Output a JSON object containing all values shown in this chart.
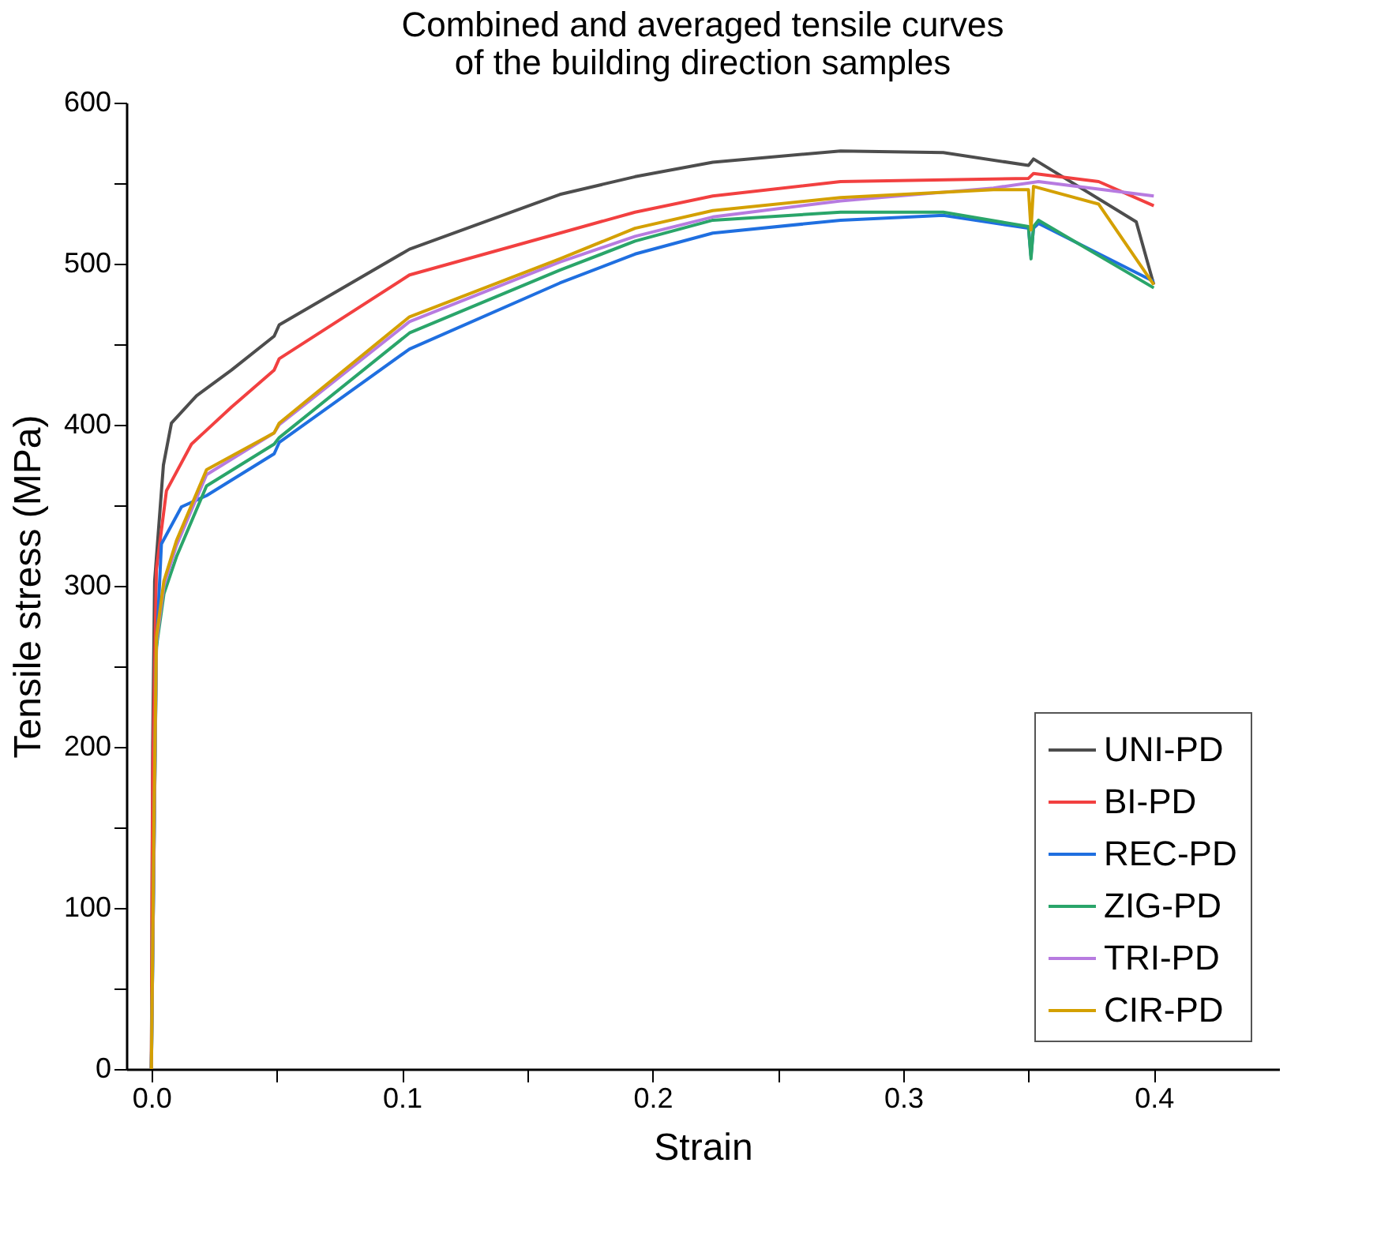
{
  "chart_data": {
    "type": "line",
    "title": "Combined and averaged tensile curves\nof the building direction samples",
    "xlabel": "Strain",
    "ylabel": "Tensile stress (MPa)",
    "xlim": [
      -0.01,
      0.45
    ],
    "ylim": [
      0,
      600
    ],
    "xticks": [
      {
        "value": 0.0,
        "label": "0.0"
      },
      {
        "value": 0.05,
        "label": null
      },
      {
        "value": 0.1,
        "label": "0.1"
      },
      {
        "value": 0.15,
        "label": null
      },
      {
        "value": 0.2,
        "label": "0.2"
      },
      {
        "value": 0.25,
        "label": null
      },
      {
        "value": 0.3,
        "label": "0.3"
      },
      {
        "value": 0.35,
        "label": null
      },
      {
        "value": 0.4,
        "label": "0.4"
      }
    ],
    "yticks": [
      0,
      {
        "value": 50,
        "label": null
      },
      100,
      {
        "value": 150,
        "label": null
      },
      200,
      {
        "value": 250,
        "label": null
      },
      300,
      {
        "value": 350,
        "label": null
      },
      400,
      {
        "value": 450,
        "label": null
      },
      500,
      {
        "value": 550,
        "label": null
      },
      600
    ],
    "grid": false,
    "legend": "bottom right",
    "marker": "none",
    "line_style": "solid",
    "series": [
      {
        "name": "UNI-PD",
        "color": "#4d4d4d",
        "x": [
          0,
          0.0005,
          0.0013,
          0.0048,
          0.008,
          0.018,
          0.032,
          0.049,
          0.051,
          0.103,
          0.163,
          0.193,
          0.224,
          0.275,
          0.316,
          0.35,
          0.352,
          0.393,
          0.4
        ],
        "values": [
          0,
          200,
          303,
          375,
          401,
          418,
          434,
          455,
          462,
          509,
          543,
          554,
          563,
          570,
          569,
          561,
          565,
          526,
          487
        ]
      },
      {
        "name": "BI-PD",
        "color": "#f24040",
        "x": [
          0,
          0.0005,
          0.002,
          0.006,
          0.016,
          0.032,
          0.049,
          0.051,
          0.103,
          0.163,
          0.193,
          0.224,
          0.275,
          0.35,
          0.352,
          0.378,
          0.4
        ],
        "values": [
          0,
          180,
          310,
          359,
          388,
          411,
          434,
          441,
          493,
          519,
          532,
          542,
          551,
          553,
          556,
          551,
          536
        ]
      },
      {
        "name": "REC-PD",
        "color": "#1f6fe0",
        "x": [
          0,
          0.002,
          0.004,
          0.012,
          0.022,
          0.049,
          0.051,
          0.103,
          0.163,
          0.193,
          0.224,
          0.275,
          0.316,
          0.35,
          0.351,
          0.352,
          0.354,
          0.4
        ],
        "values": [
          0,
          260,
          326,
          349,
          356,
          382,
          389,
          447,
          488,
          506,
          519,
          527,
          530,
          522,
          505,
          522,
          525,
          489
        ]
      },
      {
        "name": "ZIG-PD",
        "color": "#2aa56a",
        "x": [
          0,
          0.002,
          0.005,
          0.01,
          0.022,
          0.049,
          0.051,
          0.103,
          0.163,
          0.193,
          0.224,
          0.275,
          0.316,
          0.35,
          0.351,
          0.352,
          0.354,
          0.4
        ],
        "values": [
          0,
          262,
          295,
          318,
          362,
          388,
          392,
          457,
          496,
          514,
          527,
          532,
          532,
          523,
          503,
          523,
          527,
          485
        ]
      },
      {
        "name": "TRI-PD",
        "color": "#b77be0",
        "x": [
          0,
          0.002,
          0.005,
          0.01,
          0.022,
          0.049,
          0.051,
          0.103,
          0.163,
          0.193,
          0.224,
          0.275,
          0.336,
          0.354,
          0.4
        ],
        "values": [
          0,
          265,
          300,
          325,
          369,
          395,
          400,
          464,
          501,
          517,
          529,
          539,
          547,
          551,
          542
        ]
      },
      {
        "name": "CIR-PD",
        "color": "#d4a000",
        "x": [
          0,
          0.001,
          0.002,
          0.005,
          0.01,
          0.022,
          0.049,
          0.051,
          0.103,
          0.163,
          0.193,
          0.224,
          0.275,
          0.336,
          0.35,
          0.351,
          0.352,
          0.378,
          0.4
        ],
        "values": [
          0,
          150,
          268,
          303,
          328,
          372,
          395,
          401,
          467,
          503,
          522,
          533,
          541,
          546,
          546,
          521,
          548,
          537,
          487
        ]
      }
    ]
  }
}
